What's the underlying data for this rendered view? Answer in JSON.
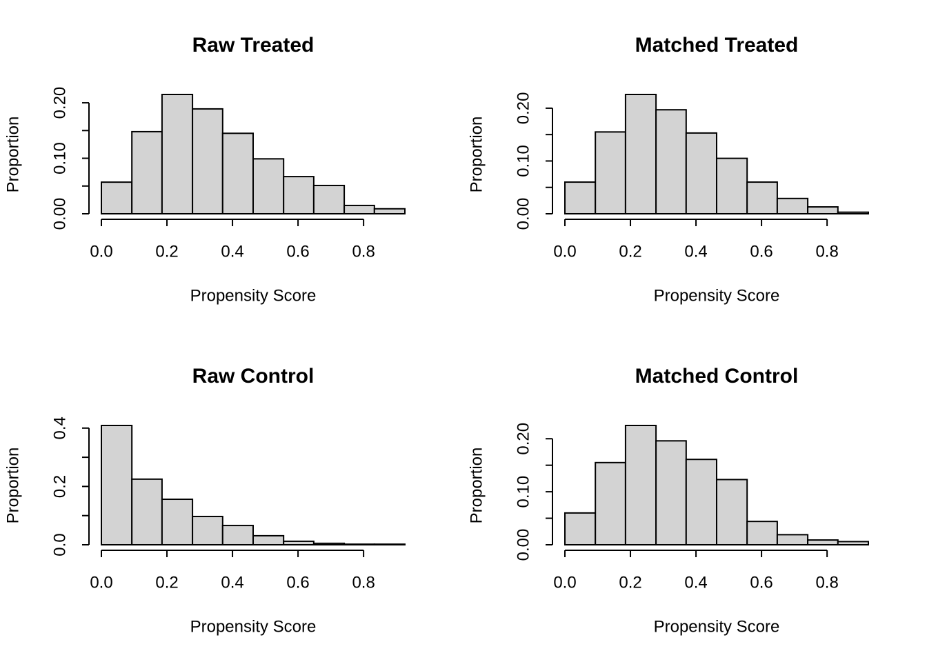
{
  "chart_data": [
    {
      "type": "histogram",
      "title": "Raw Treated",
      "xlabel": "Propensity Score",
      "ylabel": "Proportion",
      "color": "#d3d3d3",
      "bins": [
        0,
        0.093,
        0.185,
        0.278,
        0.37,
        0.463,
        0.556,
        0.648,
        0.741,
        0.833,
        0.926
      ],
      "values": [
        0.057,
        0.148,
        0.215,
        0.189,
        0.145,
        0.099,
        0.067,
        0.051,
        0.015,
        0.009
      ],
      "xlim": [
        0,
        0.926
      ],
      "xticks": [
        {
          "value": 0,
          "label": "0.0"
        },
        0.2,
        0.4,
        0.6,
        0.8
      ],
      "ylim": [
        0,
        0.215
      ],
      "yticks": [
        {
          "value": 0,
          "label": "0.00"
        },
        {
          "value": 0.05,
          "label": null
        },
        {
          "value": 0.1,
          "label": "0.10"
        },
        {
          "value": 0.15,
          "label": null
        },
        {
          "value": 0.2,
          "label": "0.20"
        }
      ]
    },
    {
      "type": "histogram",
      "title": "Matched Treated",
      "xlabel": "Propensity Score",
      "ylabel": "Proportion",
      "color": "#d3d3d3",
      "bins": [
        0,
        0.093,
        0.185,
        0.278,
        0.37,
        0.463,
        0.556,
        0.648,
        0.741,
        0.833,
        0.926
      ],
      "values": [
        0.06,
        0.155,
        0.226,
        0.197,
        0.153,
        0.105,
        0.06,
        0.029,
        0.013,
        0.003
      ],
      "xlim": [
        0,
        0.926
      ],
      "xticks": [
        {
          "value": 0,
          "label": "0.0"
        },
        0.2,
        0.4,
        0.6,
        0.8
      ],
      "ylim": [
        0,
        0.226
      ],
      "yticks": [
        {
          "value": 0,
          "label": "0.00"
        },
        {
          "value": 0.05,
          "label": null
        },
        {
          "value": 0.1,
          "label": "0.10"
        },
        {
          "value": 0.15,
          "label": null
        },
        {
          "value": 0.2,
          "label": "0.20"
        }
      ]
    },
    {
      "type": "histogram",
      "title": "Raw Control",
      "xlabel": "Propensity Score",
      "ylabel": "Proportion",
      "color": "#d3d3d3",
      "bins": [
        0,
        0.093,
        0.185,
        0.278,
        0.37,
        0.463,
        0.556,
        0.648,
        0.741,
        0.833,
        0.926
      ],
      "values": [
        0.409,
        0.225,
        0.156,
        0.097,
        0.066,
        0.031,
        0.012,
        0.005,
        0.002,
        0.002
      ],
      "xlim": [
        0,
        0.926
      ],
      "xticks": [
        {
          "value": 0,
          "label": "0.0"
        },
        0.2,
        0.4,
        0.6,
        0.8
      ],
      "ylim": [
        0,
        0.409
      ],
      "yticks": [
        {
          "value": 0,
          "label": "0.0"
        },
        {
          "value": 0.1,
          "label": null
        },
        0.2,
        {
          "value": 0.3,
          "label": null
        },
        0.4
      ]
    },
    {
      "type": "histogram",
      "title": "Matched Control",
      "xlabel": "Propensity Score",
      "ylabel": "Proportion",
      "color": "#d3d3d3",
      "bins": [
        0,
        0.093,
        0.185,
        0.278,
        0.37,
        0.463,
        0.556,
        0.648,
        0.741,
        0.833,
        0.926
      ],
      "values": [
        0.06,
        0.155,
        0.225,
        0.196,
        0.161,
        0.123,
        0.044,
        0.019,
        0.009,
        0.006
      ],
      "xlim": [
        0,
        0.926
      ],
      "xticks": [
        {
          "value": 0,
          "label": "0.0"
        },
        0.2,
        0.4,
        0.6,
        0.8
      ],
      "ylim": [
        0,
        0.225
      ],
      "yticks": [
        {
          "value": 0,
          "label": "0.00"
        },
        {
          "value": 0.05,
          "label": null
        },
        {
          "value": 0.1,
          "label": "0.10"
        },
        {
          "value": 0.15,
          "label": null
        },
        {
          "value": 0.2,
          "label": "0.20"
        }
      ]
    }
  ]
}
